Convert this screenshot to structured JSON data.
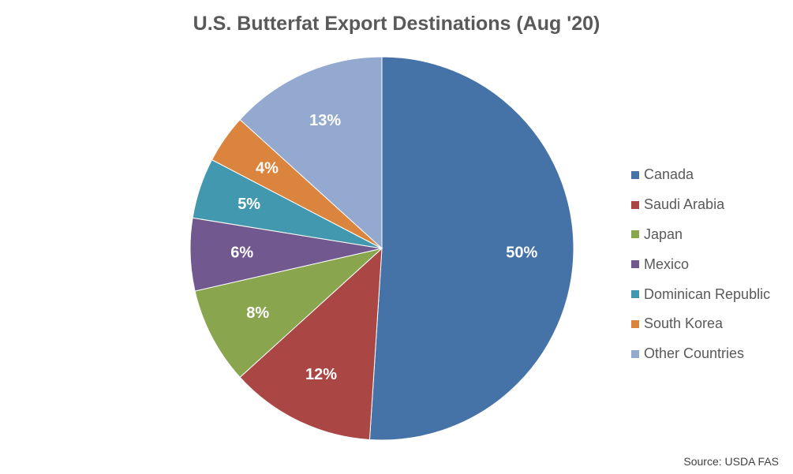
{
  "chart_data": {
    "type": "pie",
    "title": "U.S. Butterfat Export Destinations (Aug '20)",
    "categories": [
      "Canada",
      "Saudi Arabia",
      "Japan",
      "Mexico",
      "Dominican Republic",
      "South Korea",
      "Other Countries"
    ],
    "values": [
      50,
      12,
      8,
      6,
      5,
      4,
      13
    ],
    "data_labels": [
      "50%",
      "12%",
      "8%",
      "6%",
      "5%",
      "4%",
      "13%"
    ],
    "colors": [
      "#4572A7",
      "#AA4643",
      "#89A54E",
      "#71588F",
      "#4198AF",
      "#DB843D",
      "#93A9CF"
    ],
    "legend_position": "right",
    "start_angle": "12 o'clock",
    "direction": "clockwise"
  },
  "source": "Source: USDA FAS"
}
